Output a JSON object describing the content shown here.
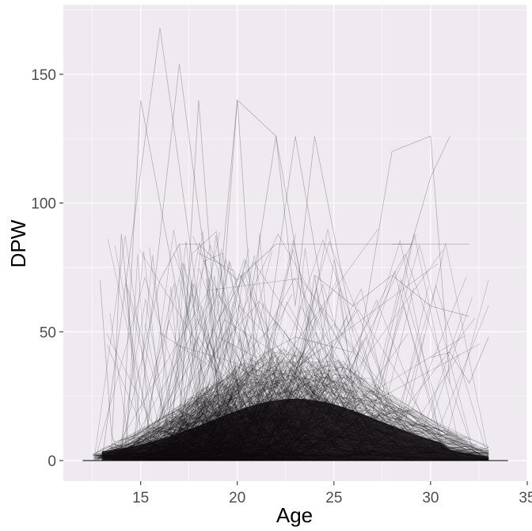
{
  "chart_data": {
    "type": "line",
    "title": "",
    "xlabel": "Age",
    "ylabel": "DPW",
    "xlim": [
      11,
      35
    ],
    "ylim": [
      -8,
      177
    ],
    "x_ticks": [
      15,
      20,
      25,
      30,
      35
    ],
    "x_tick_labels": [
      "15",
      "20",
      "25",
      "30",
      "35"
    ],
    "y_ticks": [
      0,
      50,
      100,
      150
    ],
    "y_tick_labels": [
      "0",
      "50",
      "100",
      "150"
    ],
    "grid": true,
    "legend": "none",
    "line_color": "#000000",
    "line_alpha": 0.25,
    "panel_background": "#eeeaf0",
    "grid_color": "#ffffff",
    "note_seed": 7,
    "series": [
      {
        "x": [
          13,
          16,
          18
        ],
        "values": [
          0,
          168,
          60
        ]
      },
      {
        "x": [
          15,
          17,
          19,
          22
        ],
        "values": [
          20,
          154,
          40,
          10
        ]
      },
      {
        "x": [
          14,
          15,
          18,
          20
        ],
        "values": [
          0,
          140,
          20,
          5
        ]
      },
      {
        "x": [
          17,
          18,
          19,
          20,
          21
        ],
        "values": [
          10,
          140,
          40,
          140,
          30
        ]
      },
      {
        "x": [
          19,
          20,
          22,
          24
        ],
        "values": [
          60,
          140,
          126,
          40
        ]
      },
      {
        "x": [
          20,
          22,
          23,
          24,
          26
        ],
        "values": [
          30,
          126,
          60,
          126,
          50
        ]
      },
      {
        "x": [
          21,
          23,
          25,
          28
        ],
        "values": [
          20,
          126,
          40,
          20
        ]
      },
      {
        "x": [
          26,
          28,
          30,
          31
        ],
        "values": [
          30,
          120,
          126,
          30
        ]
      },
      {
        "x": [
          27,
          29,
          30,
          31
        ],
        "values": [
          20,
          84,
          110,
          126
        ]
      },
      {
        "x": [
          12.9,
          13.5,
          14,
          15
        ],
        "values": [
          70,
          10,
          0,
          3
        ]
      },
      {
        "x": [
          13.5,
          14,
          15,
          16
        ],
        "values": [
          5,
          88,
          10,
          4
        ]
      },
      {
        "x": [
          14,
          16,
          17,
          18
        ],
        "values": [
          5,
          70,
          84,
          20
        ]
      },
      {
        "x": [
          17,
          18,
          20,
          22
        ],
        "values": [
          84,
          84,
          70,
          84
        ]
      },
      {
        "x": [
          22,
          24,
          26,
          28,
          29
        ],
        "values": [
          84,
          84,
          84,
          84,
          84
        ]
      },
      {
        "x": [
          28,
          30,
          31,
          32
        ],
        "values": [
          84,
          84,
          84,
          84
        ]
      },
      {
        "x": [
          24,
          26,
          28,
          30,
          32
        ],
        "values": [
          72,
          60,
          72,
          60,
          56
        ]
      },
      {
        "x": [
          23,
          24,
          25
        ],
        "values": [
          20,
          72,
          20
        ]
      },
      {
        "x": [
          19,
          21,
          23,
          26
        ],
        "values": [
          48,
          40,
          48,
          42
        ]
      },
      {
        "x": [
          16,
          18,
          20,
          22
        ],
        "values": [
          10,
          48,
          20,
          30
        ]
      },
      {
        "x": [
          30,
          31,
          32,
          33
        ],
        "values": [
          40,
          42,
          30,
          48
        ]
      },
      {
        "x": [
          12,
          13,
          14
        ],
        "values": [
          0,
          0,
          0
        ]
      },
      {
        "x": [
          32,
          33,
          34
        ],
        "values": [
          0,
          0,
          0
        ]
      },
      {
        "x": [
          31,
          32,
          33
        ],
        "values": [
          8,
          3,
          5
        ]
      }
    ]
  }
}
